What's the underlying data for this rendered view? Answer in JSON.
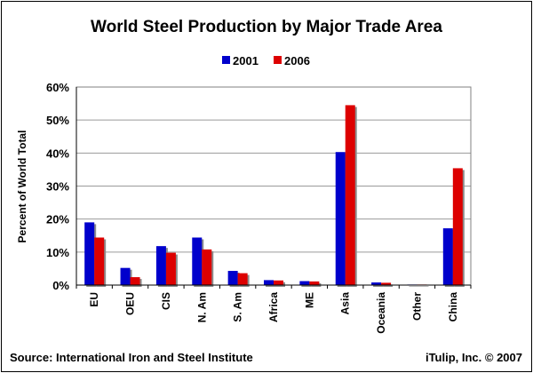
{
  "chart_data": {
    "type": "bar",
    "title": "World Steel Production by Major Trade Area",
    "ylabel": "Percent of World Total",
    "xlabel": "",
    "categories": [
      "EU",
      "OEU",
      "CIS",
      "N. Am",
      "S. Am",
      "Africa",
      "ME",
      "Asia",
      "Oceania",
      "Other",
      "China"
    ],
    "series": [
      {
        "name": "2001",
        "color": "#0000cc",
        "values": [
          19.0,
          5.2,
          11.8,
          14.4,
          4.3,
          1.5,
          1.2,
          40.3,
          0.8,
          0.1,
          17.2
        ]
      },
      {
        "name": "2006",
        "color": "#dd0000",
        "values": [
          14.4,
          2.4,
          9.8,
          10.8,
          3.6,
          1.4,
          1.1,
          54.5,
          0.7,
          0.1,
          35.4
        ]
      }
    ],
    "ylim": [
      0,
      60
    ],
    "yticks": [
      0,
      10,
      20,
      30,
      40,
      50,
      60
    ],
    "ytick_labels": [
      "0%",
      "10%",
      "20%",
      "30%",
      "40%",
      "50%",
      "60%"
    ],
    "grid": true,
    "legend_position": "top-center"
  },
  "footer": {
    "source": "Source: International Iron and Steel Institute",
    "credit": "iTulip, Inc. © 2007"
  }
}
